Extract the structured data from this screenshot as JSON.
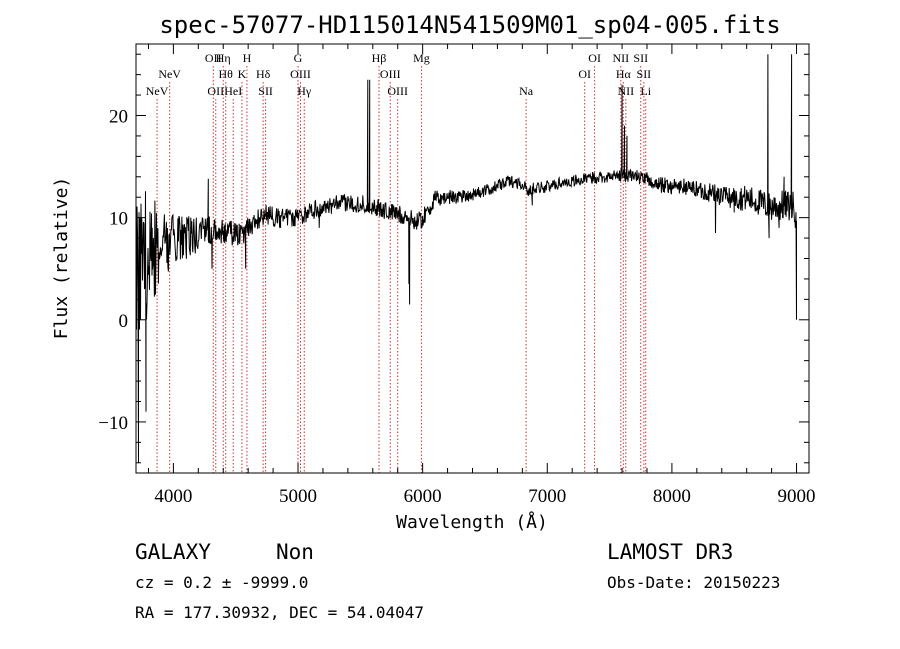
{
  "chart_data": {
    "type": "line",
    "title": "spec-57077-HD115014N541509M01_sp04-005.fits",
    "xlabel": "Wavelength (Å)",
    "ylabel": "Flux (relative)",
    "xlim": [
      3700,
      9100
    ],
    "ylim": [
      -15,
      27
    ],
    "xticks": [
      4000,
      5000,
      6000,
      7000,
      8000,
      9000
    ],
    "yticks": [
      -10,
      0,
      10,
      20
    ],
    "xtick_labels": [
      "4000",
      "5000",
      "6000",
      "7000",
      "8000",
      "9000"
    ],
    "ytick_labels": [
      "−10",
      "0",
      "10",
      "20"
    ],
    "continuum": [
      [
        3700,
        4
      ],
      [
        3760,
        6
      ],
      [
        3850,
        7
      ],
      [
        3950,
        7.5
      ],
      [
        4050,
        7.8
      ],
      [
        4150,
        8.2
      ],
      [
        4250,
        8.6
      ],
      [
        4350,
        8.9
      ],
      [
        4450,
        8.5
      ],
      [
        4550,
        8.3
      ],
      [
        4650,
        9.6
      ],
      [
        4750,
        10.3
      ],
      [
        4850,
        9.9
      ],
      [
        4950,
        10.0
      ],
      [
        5050,
        10.4
      ],
      [
        5150,
        10.8
      ],
      [
        5250,
        11.1
      ],
      [
        5350,
        11.4
      ],
      [
        5450,
        11.4
      ],
      [
        5550,
        11.3
      ],
      [
        5650,
        10.9
      ],
      [
        5750,
        10.5
      ],
      [
        5850,
        10.2
      ],
      [
        5950,
        9.6
      ],
      [
        6000,
        9.9
      ],
      [
        6100,
        11.8
      ],
      [
        6200,
        12.0
      ],
      [
        6300,
        12.1
      ],
      [
        6400,
        12.3
      ],
      [
        6500,
        12.6
      ],
      [
        6600,
        13.1
      ],
      [
        6700,
        13.6
      ],
      [
        6800,
        13.3
      ],
      [
        6850,
        12.5
      ],
      [
        6900,
        13.0
      ],
      [
        7000,
        13.0
      ],
      [
        7100,
        13.4
      ],
      [
        7200,
        13.6
      ],
      [
        7300,
        13.7
      ],
      [
        7400,
        14.0
      ],
      [
        7500,
        14.0
      ],
      [
        7600,
        14.2
      ],
      [
        7700,
        14.1
      ],
      [
        7800,
        13.7
      ],
      [
        7900,
        13.2
      ],
      [
        8000,
        13.1
      ],
      [
        8100,
        13.0
      ],
      [
        8200,
        12.8
      ],
      [
        8300,
        12.5
      ],
      [
        8400,
        12.1
      ],
      [
        8500,
        12.0
      ],
      [
        8600,
        11.9
      ],
      [
        8700,
        11.5
      ],
      [
        8800,
        11.0
      ],
      [
        8900,
        11.2
      ],
      [
        9000,
        11.0
      ]
    ],
    "noise": [
      [
        3700,
        9
      ],
      [
        3800,
        6
      ],
      [
        3900,
        3.5
      ],
      [
        4050,
        2.5
      ],
      [
        4300,
        1.4
      ],
      [
        4700,
        1.0
      ],
      [
        5500,
        0.9
      ],
      [
        6000,
        0.9
      ],
      [
        6500,
        0.6
      ],
      [
        7500,
        0.6
      ],
      [
        8200,
        0.9
      ],
      [
        8600,
        1.3
      ],
      [
        9000,
        1.6
      ]
    ],
    "features": [
      {
        "x": 3720,
        "y": -14
      },
      {
        "x": 3745,
        "y": 10
      },
      {
        "x": 3780,
        "y": -9
      },
      {
        "x": 3830,
        "y": 9
      },
      {
        "x": 4280,
        "y": 13.8
      },
      {
        "x": 4310,
        "y": 5
      },
      {
        "x": 4580,
        "y": 5
      },
      {
        "x": 4860,
        "y": 9
      },
      {
        "x": 5170,
        "y": 9
      },
      {
        "x": 5560,
        "y": 23.5
      },
      {
        "x": 5575,
        "y": 23.5
      },
      {
        "x": 5890,
        "y": 3.5
      },
      {
        "x": 5895,
        "y": 1.5
      },
      {
        "x": 6880,
        "y": 11.2
      },
      {
        "x": 7600,
        "y": 23
      },
      {
        "x": 7620,
        "y": 19
      },
      {
        "x": 7640,
        "y": 18
      },
      {
        "x": 8350,
        "y": 8.5
      },
      {
        "x": 8500,
        "y": 10.5
      },
      {
        "x": 8770,
        "y": 26
      },
      {
        "x": 8780,
        "y": 8
      },
      {
        "x": 8820,
        "y": 12
      },
      {
        "x": 8860,
        "y": 9
      },
      {
        "x": 8900,
        "y": 14
      },
      {
        "x": 8960,
        "y": 26
      },
      {
        "x": 8990,
        "y": 9
      },
      {
        "x": 9000,
        "y": 0
      }
    ],
    "emission_lines": [
      {
        "wavelength": 3869,
        "label": "NeV",
        "row": 3
      },
      {
        "wavelength": 3970,
        "label": "NeV",
        "row": 2
      },
      {
        "wavelength": 4320,
        "label": "OII",
        "row": 1
      },
      {
        "wavelength": 4340,
        "label": "OII",
        "row": 3
      },
      {
        "wavelength": 4400,
        "label": "Hη",
        "row": 1
      },
      {
        "wavelength": 4420,
        "label": "Hθ",
        "row": 2
      },
      {
        "wavelength": 4480,
        "label": "HeI",
        "row": 3
      },
      {
        "wavelength": 4550,
        "label": "K",
        "row": 2
      },
      {
        "wavelength": 4590,
        "label": "H",
        "row": 1
      },
      {
        "wavelength": 4720,
        "label": "Hδ",
        "row": 2
      },
      {
        "wavelength": 4740,
        "label": "SII",
        "row": 3
      },
      {
        "wavelength": 5000,
        "label": "G",
        "row": 1
      },
      {
        "wavelength": 5020,
        "label": "OIII",
        "row": 2
      },
      {
        "wavelength": 5050,
        "label": "Hγ",
        "row": 3
      },
      {
        "wavelength": 5650,
        "label": "Hβ",
        "row": 1
      },
      {
        "wavelength": 5740,
        "label": "OIII",
        "row": 2
      },
      {
        "wavelength": 5800,
        "label": "OIII",
        "row": 3
      },
      {
        "wavelength": 5990,
        "label": "Mg",
        "row": 1
      },
      {
        "wavelength": 6830,
        "label": "Na",
        "row": 3
      },
      {
        "wavelength": 7300,
        "label": "OI",
        "row": 2
      },
      {
        "wavelength": 7380,
        "label": "OI",
        "row": 1
      },
      {
        "wavelength": 7590,
        "label": "NII",
        "row": 1
      },
      {
        "wavelength": 7610,
        "label": "Hα",
        "row": 2
      },
      {
        "wavelength": 7630,
        "label": "NII",
        "row": 3
      },
      {
        "wavelength": 7750,
        "label": "SII",
        "row": 1
      },
      {
        "wavelength": 7775,
        "label": "SII",
        "row": 2
      },
      {
        "wavelength": 7790,
        "label": "Li",
        "row": 3
      }
    ],
    "colors": {
      "spectrum": "#000000",
      "line_markers": "#cc3333",
      "axes": "#000000"
    }
  },
  "info": {
    "class": "GALAXY",
    "subclass": "Non",
    "survey": "LAMOST DR3",
    "cz": "cz = 0.2 ± -9999.0",
    "obs_date": "Obs-Date: 20150223",
    "coords": "RA = 177.30932, DEC =  54.04047"
  }
}
